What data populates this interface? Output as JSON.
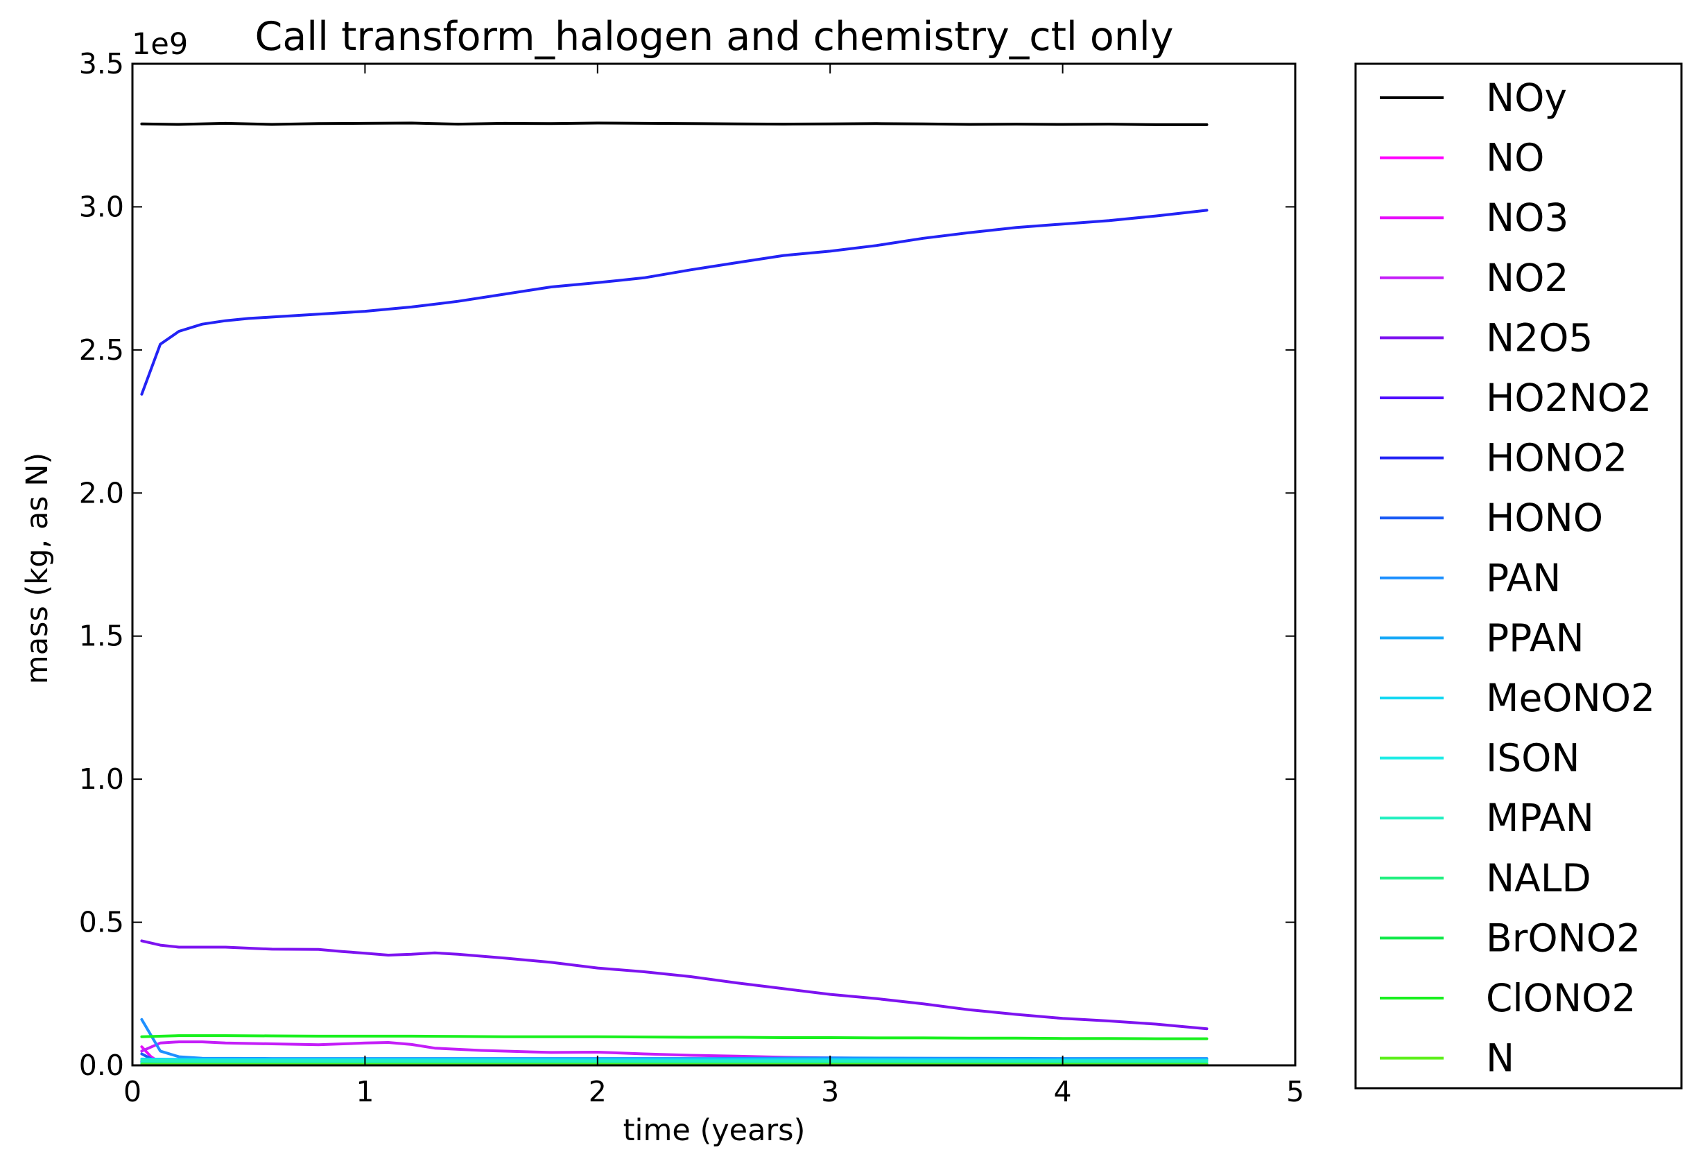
{
  "chart_data": {
    "type": "line",
    "title": "Call transform_halogen and chemistry_ctl only",
    "xlabel": "time (years)",
    "ylabel": "mass (kg, as N)",
    "y_offset_label": "1e9",
    "xlim": [
      0,
      5
    ],
    "ylim": [
      0,
      3.5
    ],
    "grid": false,
    "legend_placement": "outside-right",
    "x_ticks": [
      0,
      1,
      2,
      3,
      4,
      5
    ],
    "x_tick_labels": [
      "0",
      "1",
      "2",
      "3",
      "4",
      "5"
    ],
    "y_ticks": [
      0,
      0.5,
      1.0,
      1.5,
      2.0,
      2.5,
      3.0,
      3.5
    ],
    "y_tick_labels": [
      "0.0",
      "0.5",
      "1.0",
      "1.5",
      "2.0",
      "2.5",
      "3.0",
      "3.5"
    ],
    "series": [
      {
        "name": "NOy",
        "color": "#000000",
        "points": [
          [
            0.04,
            3.29
          ],
          [
            0.2,
            3.288
          ],
          [
            0.4,
            3.292
          ],
          [
            0.6,
            3.288
          ],
          [
            0.8,
            3.291
          ],
          [
            1.0,
            3.292
          ],
          [
            1.2,
            3.293
          ],
          [
            1.4,
            3.289
          ],
          [
            1.6,
            3.292
          ],
          [
            1.8,
            3.291
          ],
          [
            2.0,
            3.293
          ],
          [
            2.2,
            3.292
          ],
          [
            2.4,
            3.291
          ],
          [
            2.6,
            3.29
          ],
          [
            2.8,
            3.289
          ],
          [
            3.0,
            3.29
          ],
          [
            3.2,
            3.291
          ],
          [
            3.4,
            3.29
          ],
          [
            3.6,
            3.288
          ],
          [
            3.8,
            3.289
          ],
          [
            4.0,
            3.288
          ],
          [
            4.2,
            3.289
          ],
          [
            4.4,
            3.287
          ],
          [
            4.62,
            3.287
          ]
        ]
      },
      {
        "name": "NO",
        "color": "#ff00ff",
        "points": [
          [
            0.04,
            0.015
          ],
          [
            0.12,
            0.008
          ],
          [
            0.2,
            0.005
          ],
          [
            1.0,
            0.004
          ],
          [
            2.0,
            0.004
          ],
          [
            3.0,
            0.004
          ],
          [
            4.0,
            0.004
          ],
          [
            4.62,
            0.004
          ]
        ]
      },
      {
        "name": "NO3",
        "color": "#e60ffb",
        "points": [
          [
            0.04,
            0.065
          ],
          [
            0.08,
            0.03
          ],
          [
            0.12,
            0.01
          ],
          [
            0.2,
            0.005
          ],
          [
            1.0,
            0.004
          ],
          [
            2.0,
            0.004
          ],
          [
            3.0,
            0.004
          ],
          [
            4.62,
            0.004
          ]
        ]
      },
      {
        "name": "NO2",
        "color": "#c41ef8",
        "points": [
          [
            0.04,
            0.05
          ],
          [
            0.12,
            0.078
          ],
          [
            0.2,
            0.082
          ],
          [
            0.3,
            0.082
          ],
          [
            0.4,
            0.078
          ],
          [
            0.6,
            0.075
          ],
          [
            0.8,
            0.072
          ],
          [
            1.0,
            0.078
          ],
          [
            1.1,
            0.08
          ],
          [
            1.2,
            0.073
          ],
          [
            1.3,
            0.06
          ],
          [
            1.5,
            0.052
          ],
          [
            1.8,
            0.045
          ],
          [
            2.0,
            0.046
          ],
          [
            2.2,
            0.04
          ],
          [
            2.4,
            0.035
          ],
          [
            2.6,
            0.032
          ],
          [
            2.8,
            0.028
          ],
          [
            3.0,
            0.026
          ],
          [
            3.2,
            0.025
          ],
          [
            3.4,
            0.024
          ],
          [
            3.6,
            0.022
          ],
          [
            4.0,
            0.02
          ],
          [
            4.4,
            0.018
          ],
          [
            4.62,
            0.018
          ]
        ]
      },
      {
        "name": "N2O5",
        "color": "#7d13f0",
        "points": [
          [
            0.04,
            0.435
          ],
          [
            0.12,
            0.42
          ],
          [
            0.2,
            0.413
          ],
          [
            0.4,
            0.413
          ],
          [
            0.6,
            0.406
          ],
          [
            0.8,
            0.405
          ],
          [
            0.9,
            0.398
          ],
          [
            1.0,
            0.392
          ],
          [
            1.1,
            0.385
          ],
          [
            1.2,
            0.388
          ],
          [
            1.3,
            0.393
          ],
          [
            1.4,
            0.388
          ],
          [
            1.6,
            0.375
          ],
          [
            1.8,
            0.36
          ],
          [
            2.0,
            0.34
          ],
          [
            2.2,
            0.327
          ],
          [
            2.4,
            0.31
          ],
          [
            2.6,
            0.288
          ],
          [
            2.8,
            0.268
          ],
          [
            3.0,
            0.248
          ],
          [
            3.2,
            0.233
          ],
          [
            3.4,
            0.215
          ],
          [
            3.6,
            0.194
          ],
          [
            3.8,
            0.178
          ],
          [
            4.0,
            0.164
          ],
          [
            4.2,
            0.155
          ],
          [
            4.4,
            0.144
          ],
          [
            4.62,
            0.128
          ]
        ]
      },
      {
        "name": "HO2NO2",
        "color": "#4f0cff",
        "points": [
          [
            0.04,
            0.012
          ],
          [
            0.2,
            0.008
          ],
          [
            1.0,
            0.007
          ],
          [
            2.0,
            0.007
          ],
          [
            3.0,
            0.007
          ],
          [
            4.0,
            0.007
          ],
          [
            4.62,
            0.007
          ]
        ]
      },
      {
        "name": "HONO2",
        "color": "#2323f5",
        "points": [
          [
            0.04,
            2.345
          ],
          [
            0.12,
            2.52
          ],
          [
            0.2,
            2.565
          ],
          [
            0.3,
            2.59
          ],
          [
            0.4,
            2.602
          ],
          [
            0.5,
            2.61
          ],
          [
            0.6,
            2.615
          ],
          [
            0.8,
            2.625
          ],
          [
            1.0,
            2.635
          ],
          [
            1.2,
            2.65
          ],
          [
            1.4,
            2.67
          ],
          [
            1.6,
            2.695
          ],
          [
            1.8,
            2.72
          ],
          [
            2.0,
            2.735
          ],
          [
            2.2,
            2.752
          ],
          [
            2.4,
            2.78
          ],
          [
            2.6,
            2.805
          ],
          [
            2.8,
            2.83
          ],
          [
            3.0,
            2.845
          ],
          [
            3.2,
            2.865
          ],
          [
            3.4,
            2.89
          ],
          [
            3.6,
            2.91
          ],
          [
            3.8,
            2.928
          ],
          [
            4.0,
            2.94
          ],
          [
            4.2,
            2.952
          ],
          [
            4.4,
            2.968
          ],
          [
            4.62,
            2.988
          ]
        ]
      },
      {
        "name": "HONO",
        "color": "#1b5bf5",
        "points": [
          [
            0.04,
            0.04
          ],
          [
            0.1,
            0.015
          ],
          [
            0.2,
            0.006
          ],
          [
            1.0,
            0.005
          ],
          [
            2.0,
            0.005
          ],
          [
            3.0,
            0.005
          ],
          [
            4.62,
            0.005
          ]
        ]
      },
      {
        "name": "PAN",
        "color": "#1e90ff",
        "points": [
          [
            0.04,
            0.16
          ],
          [
            0.12,
            0.05
          ],
          [
            0.2,
            0.03
          ],
          [
            0.3,
            0.025
          ],
          [
            0.6,
            0.024
          ],
          [
            1.0,
            0.024
          ],
          [
            1.5,
            0.024
          ],
          [
            2.0,
            0.024
          ],
          [
            2.5,
            0.024
          ],
          [
            3.0,
            0.026
          ],
          [
            3.5,
            0.025
          ],
          [
            4.0,
            0.024
          ],
          [
            4.62,
            0.024
          ]
        ]
      },
      {
        "name": "PPAN",
        "color": "#17a9f7",
        "points": [
          [
            0.04,
            0.01
          ],
          [
            0.2,
            0.006
          ],
          [
            1.0,
            0.005
          ],
          [
            2.0,
            0.005
          ],
          [
            3.0,
            0.005
          ],
          [
            4.62,
            0.005
          ]
        ]
      },
      {
        "name": "MeONO2",
        "color": "#11d8f2",
        "points": [
          [
            0.04,
            0.022
          ],
          [
            0.2,
            0.021
          ],
          [
            1.0,
            0.021
          ],
          [
            2.0,
            0.02
          ],
          [
            3.0,
            0.02
          ],
          [
            4.0,
            0.019
          ],
          [
            4.62,
            0.019
          ]
        ]
      },
      {
        "name": "ISON",
        "color": "#1fece6",
        "points": [
          [
            0.04,
            0.01
          ],
          [
            0.2,
            0.009
          ],
          [
            1.0,
            0.009
          ],
          [
            2.0,
            0.009
          ],
          [
            3.0,
            0.009
          ],
          [
            4.62,
            0.009
          ]
        ]
      },
      {
        "name": "MPAN",
        "color": "#22f0c0",
        "points": [
          [
            0.04,
            0.018
          ],
          [
            0.2,
            0.016
          ],
          [
            1.0,
            0.016
          ],
          [
            2.0,
            0.015
          ],
          [
            3.0,
            0.015
          ],
          [
            4.62,
            0.015
          ]
        ]
      },
      {
        "name": "NALD",
        "color": "#22f080",
        "points": [
          [
            0.04,
            0.006
          ],
          [
            0.2,
            0.005
          ],
          [
            1.0,
            0.005
          ],
          [
            2.0,
            0.005
          ],
          [
            3.0,
            0.005
          ],
          [
            4.62,
            0.005
          ]
        ]
      },
      {
        "name": "BrONO2",
        "color": "#11e94a",
        "points": [
          [
            0.04,
            0.003
          ],
          [
            1.0,
            0.003
          ],
          [
            2.0,
            0.003
          ],
          [
            3.0,
            0.003
          ],
          [
            4.62,
            0.003
          ]
        ]
      },
      {
        "name": "ClONO2",
        "color": "#19f01e",
        "points": [
          [
            0.04,
            0.1
          ],
          [
            0.2,
            0.104
          ],
          [
            0.4,
            0.104
          ],
          [
            0.6,
            0.103
          ],
          [
            0.8,
            0.102
          ],
          [
            1.0,
            0.102
          ],
          [
            1.2,
            0.102
          ],
          [
            1.4,
            0.101
          ],
          [
            1.6,
            0.1
          ],
          [
            1.8,
            0.1
          ],
          [
            2.0,
            0.1
          ],
          [
            2.2,
            0.099
          ],
          [
            2.4,
            0.098
          ],
          [
            2.6,
            0.098
          ],
          [
            2.8,
            0.097
          ],
          [
            3.0,
            0.097
          ],
          [
            3.2,
            0.096
          ],
          [
            3.4,
            0.096
          ],
          [
            3.6,
            0.095
          ],
          [
            3.8,
            0.095
          ],
          [
            4.0,
            0.094
          ],
          [
            4.2,
            0.094
          ],
          [
            4.4,
            0.093
          ],
          [
            4.62,
            0.093
          ]
        ]
      },
      {
        "name": "N",
        "color": "#5ef01c",
        "points": [
          [
            0.04,
            0.002
          ],
          [
            1.0,
            0.002
          ],
          [
            2.0,
            0.002
          ],
          [
            3.0,
            0.002
          ],
          [
            4.62,
            0.002
          ]
        ]
      }
    ]
  }
}
